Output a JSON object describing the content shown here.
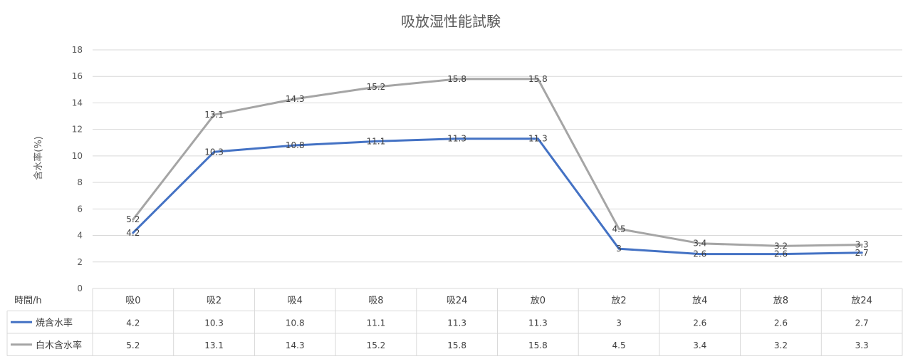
{
  "chart_data": {
    "type": "line",
    "title": "吸放湿性能試験",
    "ylabel": "含水率(%)",
    "xlabel": "時間/h",
    "ylim": [
      0,
      18
    ],
    "yticks": [
      "0",
      "2",
      "4",
      "6",
      "8",
      "10",
      "12",
      "14",
      "16",
      "18"
    ],
    "grid": true,
    "legend": "data-table",
    "categories": [
      "吸0",
      "吸2",
      "吸4",
      "吸8",
      "吸24",
      "放0",
      "放2",
      "放4",
      "放8",
      "放24"
    ],
    "series": [
      {
        "name": "焼含水率",
        "color": "#4472C4",
        "values": [
          4.2,
          10.3,
          10.8,
          11.1,
          11.3,
          11.3,
          3,
          2.6,
          2.6,
          2.7
        ],
        "labels": [
          "4.2",
          "10.3",
          "10.8",
          "11.1",
          "11.3",
          "11.3",
          "3",
          "2.6",
          "2.6",
          "2.7"
        ]
      },
      {
        "name": "白木含水率",
        "color": "#A5A5A5",
        "values": [
          5.2,
          13.1,
          14.3,
          15.2,
          15.8,
          15.8,
          4.5,
          3.4,
          3.2,
          3.3
        ],
        "labels": [
          "5.2",
          "13.1",
          "14.3",
          "15.2",
          "15.8",
          "15.8",
          "4.5",
          "3.4",
          "3.2",
          "3.3"
        ]
      }
    ]
  }
}
